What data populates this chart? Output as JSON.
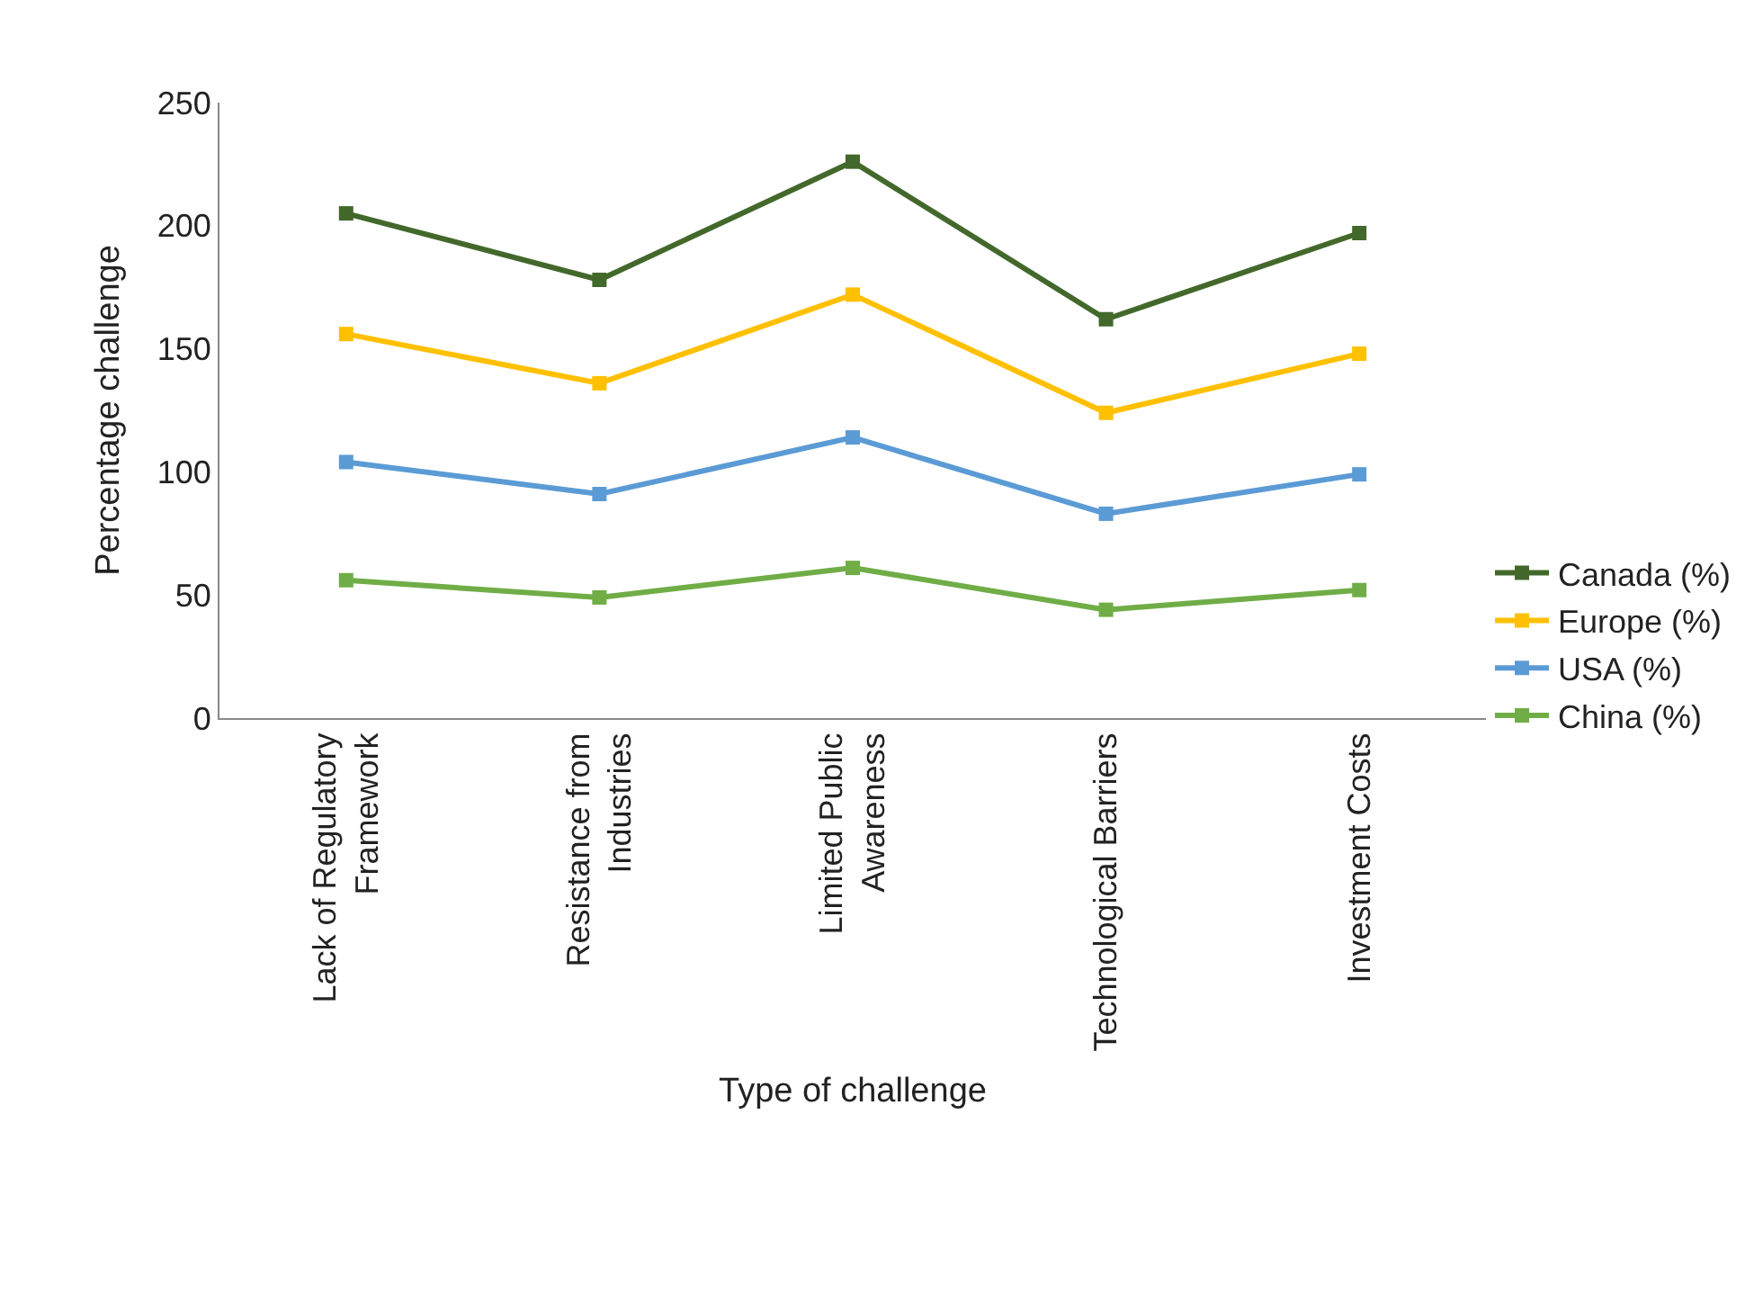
{
  "chart_data": {
    "type": "line",
    "xlabel": "Type of challenge",
    "ylabel": "Percentage challenge",
    "categories": [
      "Lack of Regulatory Framework",
      "Resistance from Industries",
      "Limited Public Awareness",
      "Technological Barriers",
      "Investment Costs"
    ],
    "series": [
      {
        "name": "Canada (%)",
        "color": "#43682b",
        "values": [
          205,
          178,
          226,
          162,
          197
        ]
      },
      {
        "name": "Europe (%)",
        "color": "#ffc000",
        "values": [
          156,
          136,
          172,
          124,
          148
        ]
      },
      {
        "name": "USA (%)",
        "color": "#5b9bd5",
        "values": [
          104,
          91,
          114,
          83,
          99
        ]
      },
      {
        "name": "China (%)",
        "color": "#70ad47",
        "values": [
          56,
          49,
          61,
          44,
          52
        ]
      }
    ],
    "ylim": [
      0,
      250
    ],
    "yticks": [
      0,
      50,
      100,
      150,
      200,
      250
    ],
    "grid": false,
    "legend": "bottom right",
    "marker": "square",
    "line_style": "solid"
  }
}
